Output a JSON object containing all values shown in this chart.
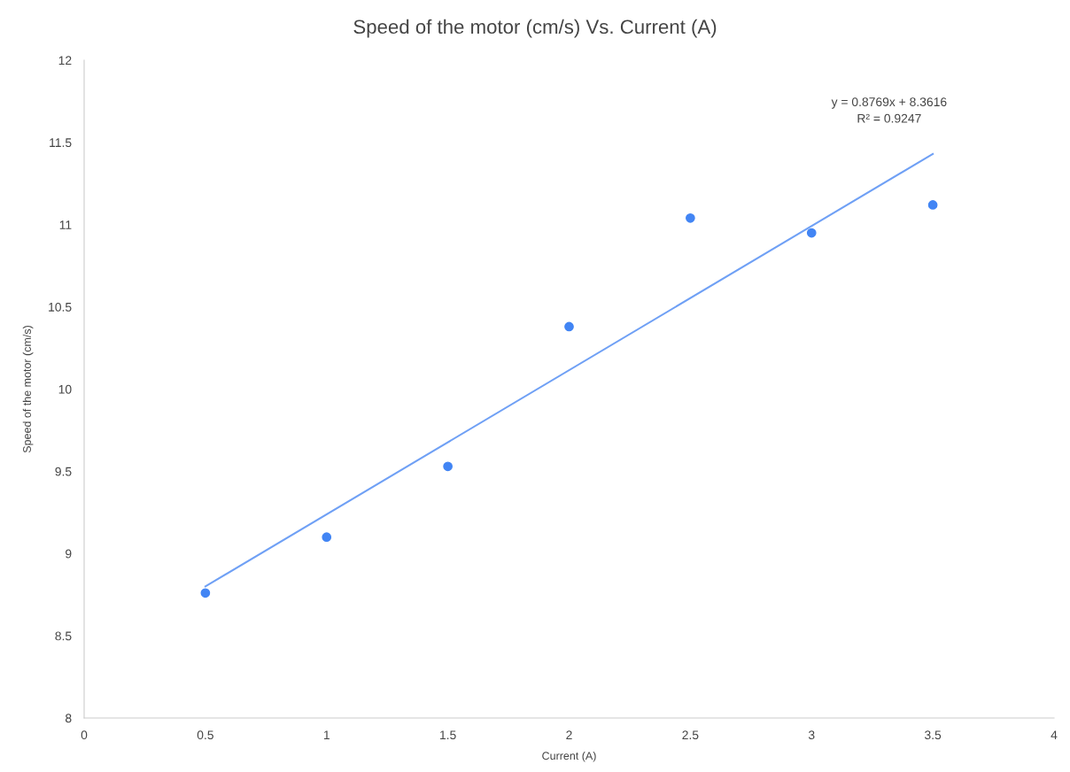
{
  "chart_data": {
    "type": "scatter",
    "title": "Speed of the motor (cm/s) Vs. Current (A)",
    "xlabel": "Current (A)",
    "ylabel": "Speed of the motor (cm/s)",
    "x": [
      0.5,
      1,
      1.5,
      2,
      2.5,
      3,
      3.5
    ],
    "series": [
      {
        "color": "#4285f4",
        "marker": "circle",
        "values": [
          8.76,
          9.1,
          9.53,
          10.38,
          11.04,
          10.95,
          11.12
        ]
      },
      {
        "type": "line",
        "color": "#6fa0f5",
        "marker": "none",
        "line_style": "solid",
        "x": [
          0.5,
          3.5
        ],
        "values": [
          8.8,
          11.43
        ]
      }
    ],
    "annotations": [
      "y = 0.8769x + 8.3616",
      "R² = 0.9247"
    ],
    "xlim": [
      0,
      4
    ],
    "xticks": [
      0,
      0.5,
      1,
      1.5,
      2,
      2.5,
      3,
      3.5,
      4
    ],
    "ylim": [
      8,
      12
    ],
    "yticks": [
      8,
      8.5,
      9,
      9.5,
      10,
      10.5,
      11,
      11.5,
      12
    ],
    "grid": false
  }
}
